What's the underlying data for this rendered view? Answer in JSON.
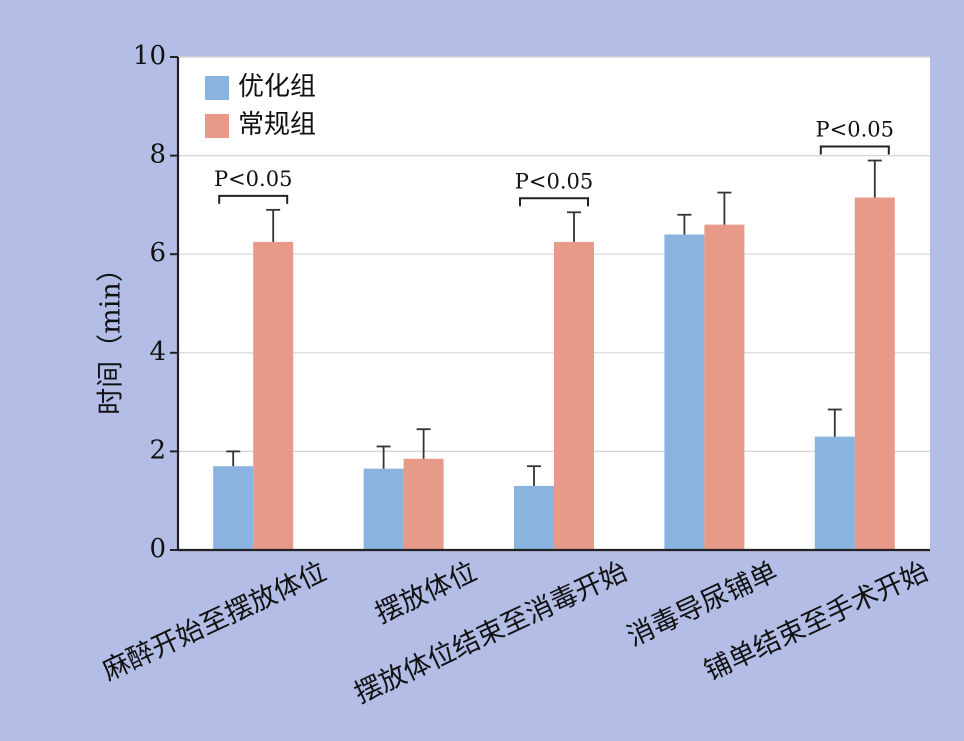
{
  "chart_data": {
    "type": "bar",
    "ylabel": "时间（min）",
    "ylim": [
      0,
      10
    ],
    "yticks": [
      0,
      2,
      4,
      6,
      8,
      10
    ],
    "categories": [
      "麻醉开始至摆放体位",
      "摆放体位",
      "摆放体位结束至消毒开始",
      "消毒导尿铺单",
      "铺单结束至手术开始"
    ],
    "series": [
      {
        "name": "优化组",
        "color": "#8ab3e0",
        "values": [
          1.7,
          1.65,
          1.3,
          6.4,
          2.3
        ],
        "errors": [
          0.3,
          0.45,
          0.4,
          0.4,
          0.55
        ]
      },
      {
        "name": "常规组",
        "color": "#e89a88",
        "values": [
          6.25,
          1.85,
          6.25,
          6.6,
          7.15
        ],
        "errors": [
          0.65,
          0.6,
          0.6,
          0.65,
          0.75
        ]
      }
    ],
    "significance": [
      {
        "category_index": 0,
        "text": "P<0.05"
      },
      {
        "category_index": 2,
        "text": "P<0.05"
      },
      {
        "category_index": 4,
        "text": "P<0.05"
      }
    ],
    "grid": true,
    "legend_position": "top-left"
  }
}
